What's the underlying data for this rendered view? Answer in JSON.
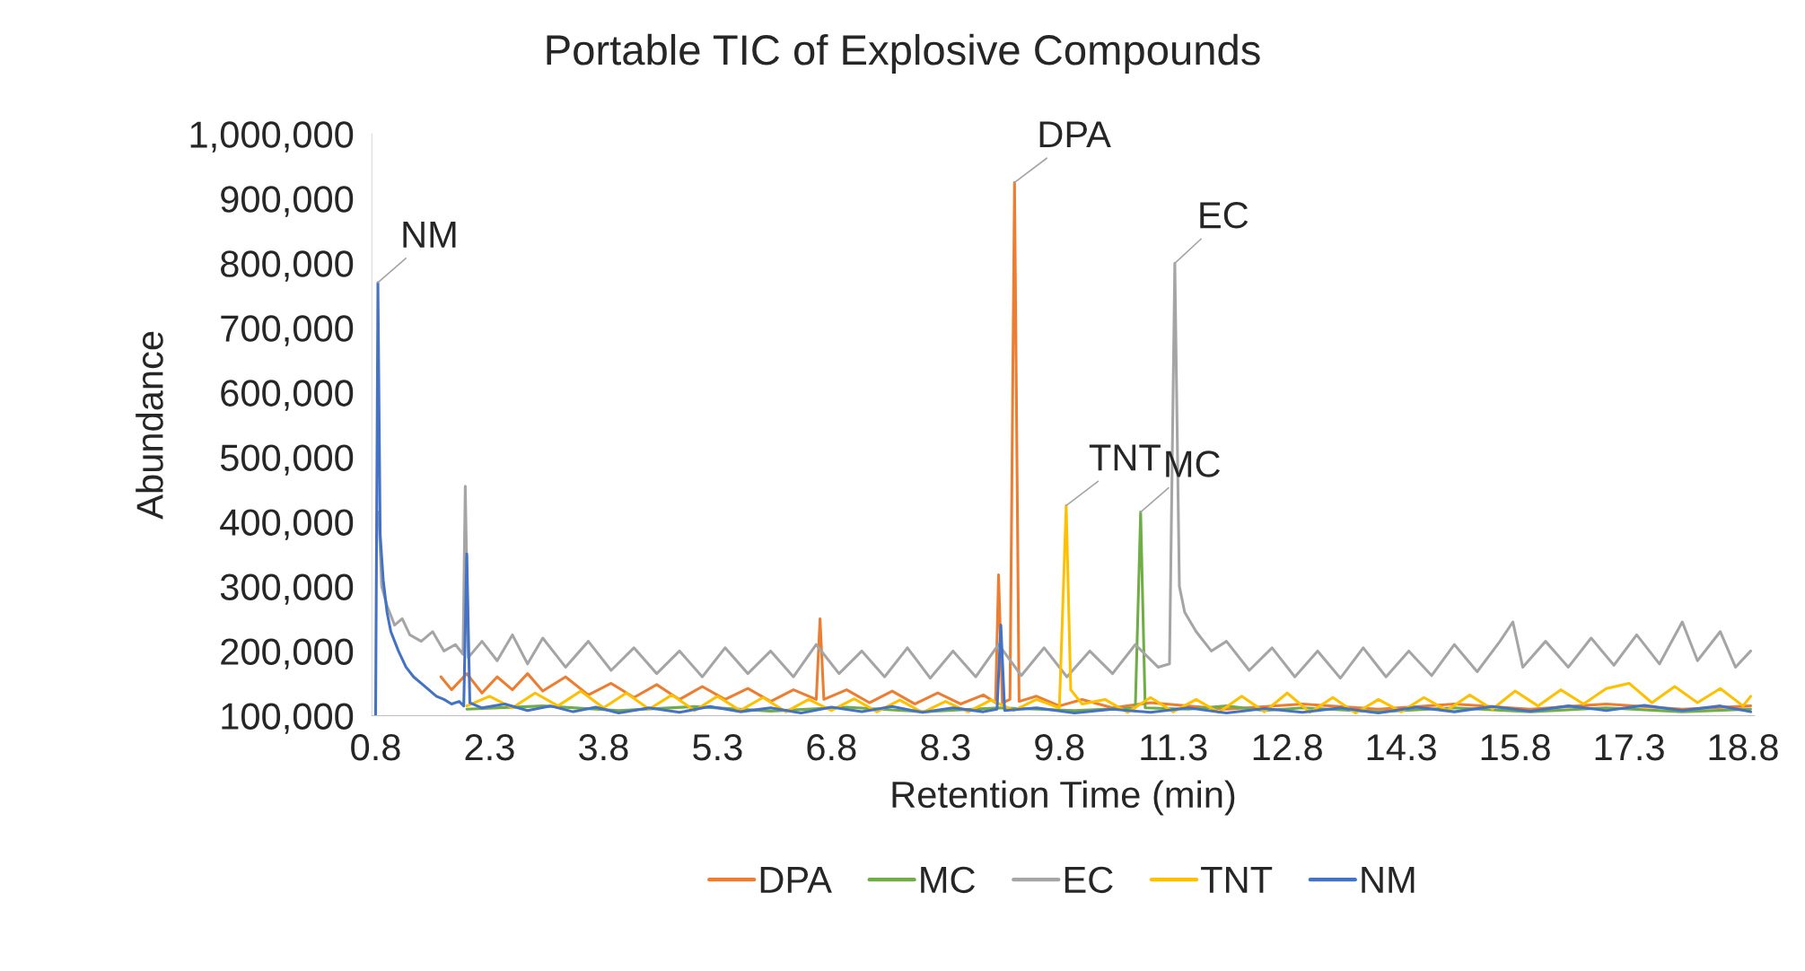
{
  "chart_data": {
    "type": "line",
    "title": "Portable TIC of Explosive Compounds",
    "xlabel": "Retention Time (min)",
    "ylabel": "Abundance",
    "xlim": [
      0.75,
      18.95
    ],
    "xticks": [
      0.8,
      2.3,
      3.8,
      5.3,
      6.8,
      8.3,
      9.8,
      11.3,
      12.8,
      14.3,
      15.8,
      17.3,
      18.8
    ],
    "ylim": [
      100000,
      1000000
    ],
    "yticks": [
      {
        "value": 100000,
        "label": "100,000"
      },
      {
        "value": 200000,
        "label": "200,000"
      },
      {
        "value": 300000,
        "label": "300,000"
      },
      {
        "value": 400000,
        "label": "400,000"
      },
      {
        "value": 500000,
        "label": "500,000"
      },
      {
        "value": 600000,
        "label": "600,000"
      },
      {
        "value": 700000,
        "label": "700,000"
      },
      {
        "value": 800000,
        "label": "800,000"
      },
      {
        "value": 900000,
        "label": "900,000"
      },
      {
        "value": 1000000,
        "label": "1,000,000"
      }
    ],
    "grid": false,
    "legend": "bottom",
    "marker": "none",
    "line_style": "solid",
    "series": [
      {
        "name": "DPA",
        "color": "#ed7d31",
        "x": [
          1.66,
          1.8,
          2.0,
          2.2,
          2.4,
          2.6,
          2.8,
          3.0,
          3.3,
          3.6,
          3.9,
          4.2,
          4.5,
          4.8,
          5.1,
          5.4,
          5.7,
          6.0,
          6.3,
          6.6,
          6.65,
          6.7,
          7.0,
          7.3,
          7.6,
          7.9,
          8.2,
          8.5,
          8.8,
          8.96,
          9.0,
          9.05,
          9.15,
          9.21,
          9.27,
          9.5,
          9.8,
          10.1,
          10.5,
          11.0,
          12.0,
          13.0,
          14.0,
          15.0,
          16.0,
          17.0,
          18.0,
          18.9
        ],
        "values": [
          160000,
          140000,
          165000,
          135000,
          160000,
          140000,
          165000,
          138000,
          160000,
          132000,
          150000,
          128000,
          148000,
          125000,
          145000,
          125000,
          142000,
          122000,
          140000,
          125000,
          250000,
          125000,
          140000,
          120000,
          138000,
          118000,
          135000,
          118000,
          132000,
          120000,
          318000,
          120000,
          125000,
          925000,
          122000,
          130000,
          115000,
          125000,
          112000,
          120000,
          110000,
          118000,
          110000,
          118000,
          110000,
          118000,
          110000,
          115000
        ]
      },
      {
        "name": "MC",
        "color": "#70ad47",
        "x": [
          2.0,
          3.0,
          4.0,
          5.0,
          6.0,
          7.0,
          8.0,
          9.0,
          10.0,
          10.8,
          10.87,
          10.93,
          11.5,
          12.0,
          12.5,
          13.0,
          14.0,
          15.0,
          16.0,
          17.0,
          18.0,
          18.9
        ],
        "values": [
          110000,
          115000,
          108000,
          114000,
          107000,
          113000,
          106000,
          112000,
          108000,
          112000,
          415000,
          112000,
          110000,
          115000,
          108000,
          112000,
          106000,
          112000,
          106000,
          112000,
          106000,
          110000
        ]
      },
      {
        "name": "EC",
        "color": "#a5a5a5",
        "x": [
          0.84,
          0.88,
          0.95,
          1.05,
          1.15,
          1.25,
          1.4,
          1.55,
          1.7,
          1.85,
          1.95,
          1.98,
          2.02,
          2.2,
          2.4,
          2.6,
          2.8,
          3.0,
          3.3,
          3.6,
          3.9,
          4.2,
          4.5,
          4.8,
          5.1,
          5.4,
          5.7,
          6.0,
          6.3,
          6.6,
          6.9,
          7.2,
          7.5,
          7.8,
          8.1,
          8.4,
          8.7,
          9.0,
          9.3,
          9.6,
          9.9,
          10.2,
          10.5,
          10.8,
          11.1,
          11.25,
          11.32,
          11.38,
          11.45,
          11.6,
          11.8,
          12.0,
          12.3,
          12.6,
          12.9,
          13.2,
          13.5,
          13.8,
          14.1,
          14.4,
          14.7,
          15.0,
          15.3,
          15.6,
          15.77,
          15.9,
          16.2,
          16.5,
          16.8,
          17.1,
          17.4,
          17.7,
          18.0,
          18.2,
          18.5,
          18.7,
          18.9
        ],
        "values": [
          415000,
          300000,
          270000,
          240000,
          250000,
          225000,
          215000,
          230000,
          200000,
          210000,
          195000,
          455000,
          190000,
          215000,
          185000,
          225000,
          180000,
          220000,
          175000,
          215000,
          170000,
          205000,
          165000,
          200000,
          160000,
          205000,
          165000,
          200000,
          160000,
          210000,
          165000,
          200000,
          160000,
          205000,
          158000,
          200000,
          160000,
          210000,
          162000,
          205000,
          160000,
          200000,
          165000,
          210000,
          175000,
          180000,
          800000,
          300000,
          260000,
          230000,
          200000,
          215000,
          170000,
          205000,
          160000,
          200000,
          158000,
          205000,
          160000,
          200000,
          162000,
          210000,
          168000,
          215000,
          245000,
          175000,
          215000,
          175000,
          220000,
          178000,
          225000,
          180000,
          245000,
          185000,
          230000,
          175000,
          200000
        ]
      },
      {
        "name": "TNT",
        "color": "#ffc000",
        "x": [
          2.0,
          2.3,
          2.6,
          2.9,
          3.2,
          3.5,
          3.8,
          4.1,
          4.4,
          4.7,
          5.0,
          5.3,
          5.6,
          5.9,
          6.2,
          6.5,
          6.8,
          7.1,
          7.4,
          7.7,
          8.0,
          8.3,
          8.6,
          8.9,
          9.2,
          9.5,
          9.8,
          9.89,
          9.95,
          10.1,
          10.4,
          10.7,
          11.0,
          11.3,
          11.6,
          11.9,
          12.2,
          12.5,
          12.8,
          13.1,
          13.4,
          13.7,
          14.0,
          14.3,
          14.6,
          14.9,
          15.2,
          15.5,
          15.8,
          16.1,
          16.4,
          16.7,
          17.0,
          17.3,
          17.6,
          17.9,
          18.2,
          18.5,
          18.8,
          18.9
        ],
        "values": [
          115000,
          130000,
          112000,
          135000,
          115000,
          138000,
          112000,
          135000,
          110000,
          132000,
          108000,
          130000,
          108000,
          128000,
          106000,
          125000,
          108000,
          126000,
          106000,
          124000,
          105000,
          122000,
          106000,
          124000,
          108000,
          125000,
          112000,
          425000,
          140000,
          118000,
          125000,
          105000,
          128000,
          106000,
          125000,
          105000,
          130000,
          106000,
          135000,
          105000,
          128000,
          104000,
          125000,
          106000,
          128000,
          108000,
          132000,
          110000,
          138000,
          115000,
          140000,
          118000,
          142000,
          150000,
          120000,
          145000,
          120000,
          142000,
          115000,
          130000
        ]
      },
      {
        "name": "NM",
        "color": "#4472c4",
        "x": [
          0.8,
          0.83,
          0.86,
          0.9,
          0.95,
          1.0,
          1.1,
          1.2,
          1.3,
          1.4,
          1.5,
          1.6,
          1.7,
          1.8,
          1.9,
          1.96,
          2.0,
          2.04,
          2.2,
          2.5,
          2.8,
          3.1,
          3.4,
          3.7,
          4.0,
          4.4,
          4.8,
          5.2,
          5.6,
          6.0,
          6.4,
          6.8,
          7.2,
          7.6,
          8.0,
          8.4,
          8.8,
          8.98,
          9.03,
          9.08,
          9.5,
          10.0,
          10.5,
          11.0,
          11.5,
          12.0,
          12.5,
          13.0,
          13.5,
          14.0,
          14.5,
          15.0,
          15.5,
          16.0,
          16.5,
          17.0,
          17.5,
          18.0,
          18.5,
          18.9
        ],
        "values": [
          100000,
          770000,
          380000,
          310000,
          260000,
          230000,
          200000,
          175000,
          160000,
          150000,
          140000,
          130000,
          125000,
          118000,
          122000,
          115000,
          350000,
          120000,
          112000,
          118000,
          108000,
          115000,
          106000,
          113000,
          104000,
          112000,
          105000,
          114000,
          106000,
          112000,
          104000,
          113000,
          106000,
          114000,
          105000,
          112000,
          106000,
          110000,
          240000,
          108000,
          112000,
          104000,
          110000,
          105000,
          112000,
          104000,
          111000,
          105000,
          112000,
          104000,
          113000,
          106000,
          114000,
          107000,
          115000,
          108000,
          116000,
          108000,
          115000,
          106000
        ]
      }
    ],
    "annotations": [
      {
        "text": "NM",
        "x": 0.83,
        "y": 770000
      },
      {
        "text": "DPA",
        "x": 9.21,
        "y": 925000
      },
      {
        "text": "EC",
        "x": 11.32,
        "y": 800000
      },
      {
        "text": "TNT",
        "x": 9.89,
        "y": 425000
      },
      {
        "text": "MC",
        "x": 10.87,
        "y": 415000
      }
    ]
  }
}
